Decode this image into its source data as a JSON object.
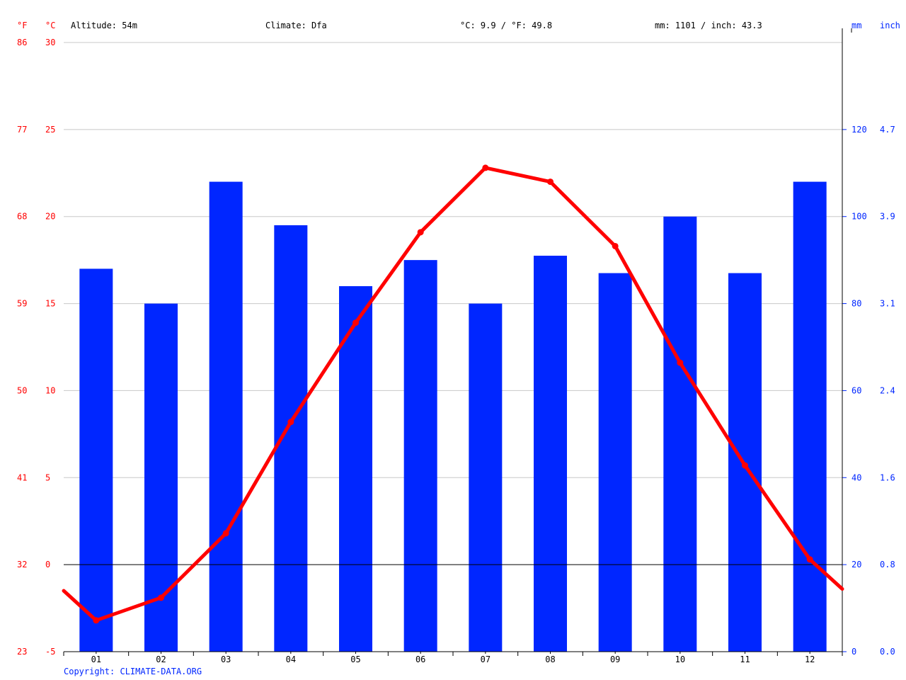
{
  "header": {
    "f_unit": "°F",
    "c_unit": "°C",
    "altitude": "Altitude: 54m",
    "climate": "Climate: Dfa",
    "temp_avg": "°C: 9.9 / °F: 49.8",
    "precip_total": "mm: 1101 / inch: 43.3",
    "mm_unit": "mm",
    "inch_unit": "inch"
  },
  "copyright": "Copyright: CLIMATE-DATA.ORG",
  "colors": {
    "temperature": "#ff0000",
    "precipitation": "#0026ff",
    "precip_axis": "#0026ff",
    "grid": "#c8c8c8",
    "text": "#000000"
  },
  "chart_data": {
    "type": "bar",
    "categories": [
      "01",
      "02",
      "03",
      "04",
      "05",
      "06",
      "07",
      "08",
      "09",
      "10",
      "11",
      "12"
    ],
    "series": [
      {
        "kind": "bar",
        "unit": "mm",
        "values": [
          88,
          80,
          108,
          98,
          84,
          90,
          80,
          91,
          87,
          100,
          87,
          108
        ]
      },
      {
        "kind": "line",
        "unit": "°C",
        "values": [
          -3.2,
          -1.9,
          1.8,
          8.2,
          13.9,
          19.1,
          22.8,
          22.0,
          18.3,
          11.6,
          5.7,
          0.3
        ]
      }
    ],
    "line_edges_c": [
      -1.5,
      -1.4
    ],
    "y_left_c": {
      "range": [
        -5,
        30
      ],
      "ticks": [
        "-5",
        "0",
        "5",
        "10",
        "15",
        "20",
        "25",
        "30"
      ]
    },
    "y_left_f": {
      "ticks": [
        "23",
        "32",
        "41",
        "50",
        "59",
        "68",
        "77",
        "86"
      ]
    },
    "y_right_mm": {
      "range": [
        0,
        140
      ],
      "ticks": [
        "0",
        "20",
        "40",
        "60",
        "80",
        "100",
        "120"
      ]
    },
    "y_right_inch": {
      "ticks": [
        "0.0",
        "0.8",
        "1.6",
        "2.4",
        "3.1",
        "3.9",
        "4.7"
      ]
    },
    "grid": true
  }
}
